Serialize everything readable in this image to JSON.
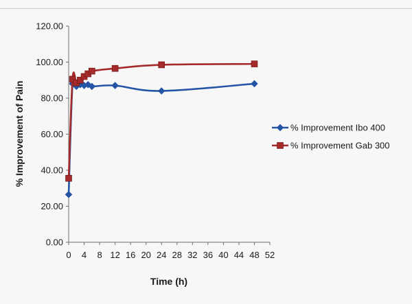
{
  "chart_data": {
    "type": "line",
    "xlabel": "Time (h)",
    "ylabel": "% Improvement of Pain",
    "xlim": [
      0,
      52
    ],
    "ylim": [
      0,
      120
    ],
    "x_ticks": [
      "0",
      "4",
      "8",
      "12",
      "16",
      "20",
      "24",
      "28",
      "32",
      "36",
      "40",
      "44",
      "48",
      "52"
    ],
    "y_ticks": [
      "0.00",
      "20.00",
      "40.00",
      "60.00",
      "80.00",
      "100.00",
      "120.00"
    ],
    "grid": false,
    "legend_position": "right",
    "series": [
      {
        "name": "% Improvement Ibo 400",
        "color": "#2454a6",
        "marker": "diamond",
        "x": [
          0,
          1,
          2,
          3,
          4,
          5,
          6,
          12,
          24,
          48
        ],
        "y": [
          26.5,
          88,
          86.5,
          87.5,
          87,
          87.5,
          86.5,
          87,
          84,
          88
        ]
      },
      {
        "name": "% Improvement Gab 300",
        "color": "#a52a2a",
        "marker": "square",
        "x": [
          0,
          1,
          2,
          3,
          4,
          5,
          6,
          12,
          24,
          48
        ],
        "y": [
          35.5,
          90.5,
          88.5,
          90,
          92,
          93.5,
          95,
          96.5,
          98.5,
          99
        ]
      }
    ]
  }
}
